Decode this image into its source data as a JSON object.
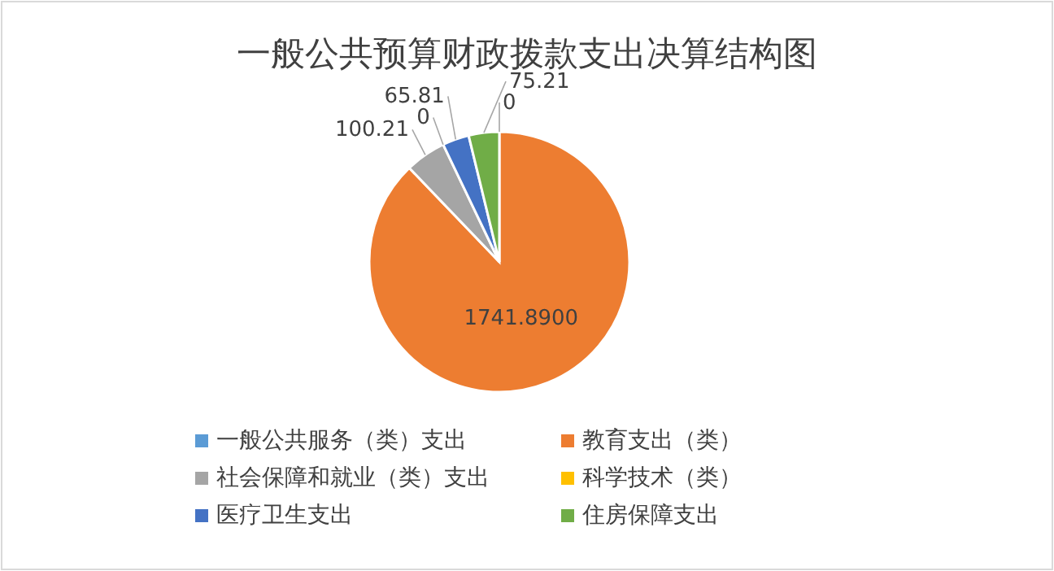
{
  "chart_data": {
    "type": "pie",
    "title": "一般公共预算财政拨款支出决算结构图",
    "categories": [
      "一般公共服务（类）支出",
      "教育支出（类）",
      "社会保障和就业（类）支出",
      "科学技术（类）",
      "医疗卫生支出",
      "住房保障支出"
    ],
    "values": [
      0,
      1741.89,
      100.21,
      0,
      65.81,
      75.21
    ],
    "value_labels": [
      "0",
      "1741.8900",
      "100.21",
      "0",
      "65.81",
      "75.21"
    ],
    "colors": [
      "#5b9bd5",
      "#ed7d31",
      "#a5a5a5",
      "#ffc000",
      "#4472c4",
      "#70ad47"
    ],
    "legend": "bottom"
  }
}
